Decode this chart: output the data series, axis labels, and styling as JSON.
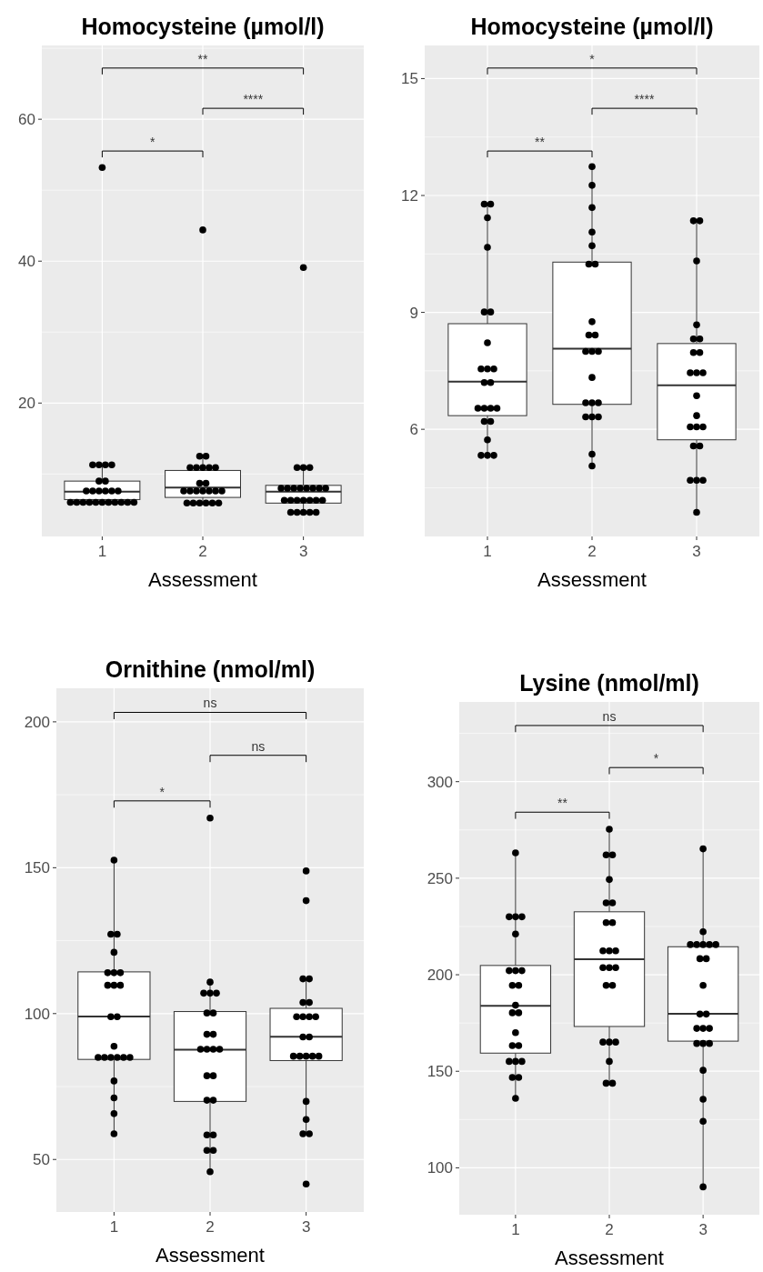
{
  "chart_data": [
    {
      "type": "box",
      "title": "Homocysteine (µmol/l)",
      "xlabel": "Assessment",
      "categories": [
        "1",
        "2",
        "3"
      ],
      "ylim": [
        1.2,
        70.4
      ],
      "yticks": [
        20,
        40,
        60
      ],
      "grid": true,
      "annotations": [
        "*",
        "****",
        "**"
      ],
      "boxes": [
        {
          "low": 6.0,
          "q1": 6.4,
          "median": 7.5,
          "q3": 9.0,
          "high": 11.3
        },
        {
          "low": 5.9,
          "q1": 6.7,
          "median": 8.1,
          "q3": 10.5,
          "high": 12.5
        },
        {
          "low": 4.6,
          "q1": 5.9,
          "median": 7.5,
          "q3": 8.4,
          "high": 10.9
        }
      ],
      "series": [
        {
          "type": "scatter",
          "color": "#000000",
          "x": [
            "1",
            "1",
            "1",
            "1",
            "1",
            "1",
            "1",
            "1",
            "1",
            "1",
            "1",
            "1",
            "1",
            "1",
            "1",
            "1",
            "1",
            "1",
            "1",
            "1",
            "1",
            "1",
            "1",
            "1",
            "2",
            "2",
            "2",
            "2",
            "2",
            "2",
            "2",
            "2",
            "2",
            "2",
            "2",
            "2",
            "2",
            "2",
            "2",
            "2",
            "2",
            "2",
            "2",
            "2",
            "2",
            "2",
            "2",
            "3",
            "3",
            "3",
            "3",
            "3",
            "3",
            "3",
            "3",
            "3",
            "3",
            "3",
            "3",
            "3",
            "3",
            "3",
            "3",
            "3",
            "3",
            "3",
            "3",
            "3",
            "3",
            "3",
            "3"
          ],
          "values": [
            53.2,
            11.3,
            11.3,
            11.3,
            11.3,
            9.0,
            9.0,
            7.6,
            7.6,
            7.6,
            7.6,
            7.6,
            7.6,
            6.0,
            6.0,
            6.0,
            6.0,
            6.0,
            6.0,
            6.0,
            6.0,
            6.0,
            6.0,
            6.0,
            44.4,
            12.5,
            12.5,
            10.9,
            10.9,
            10.9,
            10.9,
            10.9,
            8.7,
            8.7,
            7.6,
            7.6,
            7.6,
            7.6,
            7.6,
            7.6,
            7.6,
            5.9,
            5.9,
            5.9,
            5.9,
            5.9,
            5.9,
            39.1,
            10.9,
            10.9,
            10.9,
            8.0,
            8.0,
            8.0,
            8.0,
            8.0,
            8.0,
            8.0,
            8.0,
            6.3,
            6.3,
            6.3,
            6.3,
            6.3,
            6.3,
            6.3,
            4.6,
            4.6,
            4.6,
            4.6,
            4.6
          ]
        }
      ]
    },
    {
      "type": "box",
      "title": "Homocysteine (µmol/l)",
      "xlabel": "Assessment",
      "categories": [
        "1",
        "2",
        "3"
      ],
      "ylim": [
        3.25,
        15.85
      ],
      "yticks": [
        6,
        9,
        12,
        15
      ],
      "grid": true,
      "annotations": [
        "**",
        "****",
        "*"
      ],
      "boxes": [
        {
          "low": 5.33,
          "q1": 6.35,
          "median": 7.22,
          "q3": 8.71,
          "high": 11.78
        },
        {
          "low": 5.06,
          "q1": 6.64,
          "median": 8.07,
          "q3": 10.29,
          "high": 12.74
        },
        {
          "low": 3.87,
          "q1": 5.73,
          "median": 7.13,
          "q3": 8.2,
          "high": 11.35
        }
      ],
      "series": [
        {
          "type": "scatter",
          "color": "#000000",
          "x": [
            "1",
            "1",
            "1",
            "1",
            "1",
            "1",
            "1",
            "1",
            "1",
            "1",
            "1",
            "1",
            "1",
            "1",
            "1",
            "1",
            "1",
            "1",
            "1",
            "1",
            "1",
            "1",
            "2",
            "2",
            "2",
            "2",
            "2",
            "2",
            "2",
            "2",
            "2",
            "2",
            "2",
            "2",
            "2",
            "2",
            "2",
            "2",
            "2",
            "2",
            "2",
            "2",
            "2",
            "2",
            "3",
            "3",
            "3",
            "3",
            "3",
            "3",
            "3",
            "3",
            "3",
            "3",
            "3",
            "3",
            "3",
            "3",
            "3",
            "3",
            "3",
            "3",
            "3",
            "3",
            "3",
            "3"
          ],
          "values": [
            11.78,
            11.78,
            11.43,
            10.67,
            9.01,
            9.01,
            8.22,
            7.55,
            7.55,
            7.55,
            7.2,
            7.2,
            6.54,
            6.54,
            6.54,
            6.54,
            6.2,
            6.2,
            5.73,
            5.33,
            5.33,
            5.33,
            12.74,
            12.26,
            11.69,
            11.06,
            10.71,
            10.24,
            10.24,
            8.76,
            8.42,
            8.42,
            8.0,
            8.0,
            8.0,
            7.33,
            6.68,
            6.68,
            6.68,
            6.32,
            6.32,
            6.32,
            5.36,
            5.06,
            11.35,
            11.35,
            10.32,
            8.68,
            8.32,
            8.32,
            7.97,
            7.97,
            7.45,
            7.45,
            7.45,
            6.86,
            6.35,
            6.06,
            6.06,
            6.06,
            5.57,
            5.57,
            4.69,
            4.69,
            4.69,
            3.87
          ]
        }
      ]
    },
    {
      "type": "box",
      "title": "Ornithine (nmol/ml)",
      "xlabel": "Assessment",
      "categories": [
        "1",
        "2",
        "3"
      ],
      "ylim": [
        32,
        211.5
      ],
      "yticks": [
        50,
        100,
        150,
        200
      ],
      "grid": true,
      "annotations": [
        "*",
        "ns",
        "ns"
      ],
      "boxes": [
        {
          "low": 58.8,
          "q1": 84.3,
          "median": 99.0,
          "q3": 114.3,
          "high": 152.6
        },
        {
          "low": 45.8,
          "q1": 69.9,
          "median": 87.6,
          "q3": 100.7,
          "high": 110.8
        },
        {
          "low": 58.8,
          "q1": 83.9,
          "median": 92.1,
          "q3": 101.8,
          "high": 111.9
        }
      ],
      "series": [
        {
          "type": "scatter",
          "color": "#000000",
          "x": [
            "1",
            "1",
            "1",
            "1",
            "1",
            "1",
            "1",
            "1",
            "1",
            "1",
            "1",
            "1",
            "1",
            "1",
            "1",
            "1",
            "1",
            "1",
            "1",
            "1",
            "1",
            "1",
            "1",
            "2",
            "2",
            "2",
            "2",
            "2",
            "2",
            "2",
            "2",
            "2",
            "2",
            "2",
            "2",
            "2",
            "2",
            "2",
            "2",
            "2",
            "2",
            "2",
            "2",
            "2",
            "2",
            "3",
            "3",
            "3",
            "3",
            "3",
            "3",
            "3",
            "3",
            "3",
            "3",
            "3",
            "3",
            "3",
            "3",
            "3",
            "3",
            "3",
            "3",
            "3",
            "3",
            "3",
            "3"
          ],
          "values": [
            152.6,
            127.2,
            127.2,
            121.0,
            114.0,
            114.0,
            114.0,
            109.7,
            109.7,
            109.7,
            98.9,
            98.9,
            88.8,
            85.0,
            85.0,
            85.0,
            85.0,
            85.0,
            85.0,
            76.9,
            71.1,
            65.7,
            58.8,
            167.0,
            110.8,
            107.0,
            107.0,
            107.0,
            100.2,
            100.2,
            92.9,
            92.9,
            87.8,
            87.8,
            87.8,
            87.8,
            78.7,
            78.7,
            70.3,
            70.3,
            58.4,
            58.4,
            53.1,
            53.1,
            45.8,
            148.9,
            138.7,
            111.9,
            111.9,
            103.8,
            103.8,
            98.9,
            98.9,
            98.9,
            98.9,
            92.0,
            92.0,
            85.4,
            85.4,
            85.4,
            85.4,
            85.4,
            69.9,
            63.7,
            58.8,
            58.8,
            41.6
          ]
        }
      ]
    },
    {
      "type": "box",
      "title": "Lysine (nmol/ml)",
      "xlabel": "Assessment",
      "categories": [
        "1",
        "2",
        "3"
      ],
      "ylim": [
        75.7,
        341.3
      ],
      "yticks": [
        100,
        150,
        200,
        250,
        300
      ],
      "grid": true,
      "annotations": [
        "**",
        "*",
        "ns"
      ],
      "boxes": [
        {
          "low": 136.0,
          "q1": 159.4,
          "median": 183.9,
          "q3": 204.8,
          "high": 263.1
        },
        {
          "low": 143.8,
          "q1": 173.2,
          "median": 208.0,
          "q3": 232.6,
          "high": 275.4
        },
        {
          "low": 90.1,
          "q1": 165.6,
          "median": 179.8,
          "q3": 214.5,
          "high": 265.2
        }
      ],
      "series": [
        {
          "type": "scatter",
          "color": "#000000",
          "x": [
            "1",
            "1",
            "1",
            "1",
            "1",
            "1",
            "1",
            "1",
            "1",
            "1",
            "1",
            "1",
            "1",
            "1",
            "1",
            "1",
            "1",
            "1",
            "1",
            "1",
            "1",
            "1",
            "2",
            "2",
            "2",
            "2",
            "2",
            "2",
            "2",
            "2",
            "2",
            "2",
            "2",
            "2",
            "2",
            "2",
            "2",
            "2",
            "2",
            "2",
            "2",
            "2",
            "2",
            "2",
            "3",
            "3",
            "3",
            "3",
            "3",
            "3",
            "3",
            "3",
            "3",
            "3",
            "3",
            "3",
            "3",
            "3",
            "3",
            "3",
            "3",
            "3",
            "3",
            "3",
            "3",
            "3"
          ],
          "values": [
            263.1,
            230.0,
            230.0,
            230.0,
            221.1,
            202.1,
            202.1,
            202.1,
            194.5,
            194.5,
            184.2,
            180.3,
            180.3,
            170.0,
            163.3,
            163.3,
            155.1,
            155.1,
            155.1,
            146.8,
            146.8,
            136.0,
            275.4,
            262.1,
            262.1,
            249.3,
            237.2,
            237.2,
            227.0,
            227.0,
            212.4,
            212.4,
            212.4,
            203.7,
            203.7,
            203.7,
            194.5,
            194.5,
            165.1,
            165.1,
            165.1,
            155.1,
            143.8,
            143.8,
            265.2,
            222.3,
            215.6,
            215.6,
            215.6,
            215.6,
            215.6,
            208.3,
            208.3,
            194.5,
            179.6,
            179.6,
            172.2,
            172.2,
            172.2,
            164.4,
            164.4,
            164.4,
            150.5,
            135.5,
            124.1,
            90.1
          ]
        }
      ]
    }
  ]
}
